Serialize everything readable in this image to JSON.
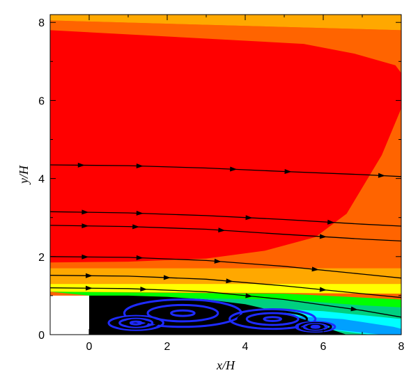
{
  "chart_data": {
    "type": "contour",
    "title": "",
    "xlabel": "x/H",
    "ylabel": "y/H",
    "xlim": [
      -1,
      8
    ],
    "ylim": [
      0,
      8.2
    ],
    "x_ticks": [
      0,
      2,
      4,
      6,
      8
    ],
    "y_ticks": [
      0,
      2,
      4,
      6,
      8
    ],
    "grid": false,
    "legend": "none",
    "step": {
      "x_from": -1,
      "x_to": 0,
      "height": 1,
      "color": "#ffffff"
    },
    "contour_levels_colors": [
      "#00a0ff",
      "#00ffff",
      "#00d080",
      "#00ff00",
      "#ffff00",
      "#ffa800",
      "#ff6400",
      "#ff0000"
    ],
    "contour_regions": [
      {
        "color": "#ffa800",
        "x": [
          -1,
          8,
          8,
          -1
        ],
        "y": [
          8.2,
          8.2,
          7.8,
          8.05
        ]
      },
      {
        "color": "#ff6400",
        "x": [
          -1,
          8,
          8,
          -1
        ],
        "y": [
          8.05,
          7.8,
          1.7,
          1.7
        ]
      },
      {
        "color": "#ff0000",
        "x": [
          -1,
          5.5,
          6.8,
          7.85,
          8,
          8,
          7.5,
          6.6,
          5.8,
          4.5,
          3,
          1,
          -1
        ],
        "y": [
          7.8,
          7.45,
          7.2,
          6.9,
          6.7,
          5.8,
          4.6,
          3.1,
          2.5,
          2.15,
          1.95,
          1.87,
          1.85
        ]
      },
      {
        "color": "#ffa800",
        "x": [
          -1,
          8,
          8,
          -1
        ],
        "y": [
          1.7,
          1.7,
          1.3,
          1.3
        ]
      },
      {
        "color": "#ffff00",
        "x": [
          -1,
          8,
          8,
          -1
        ],
        "y": [
          1.3,
          1.3,
          1.05,
          1.1
        ]
      },
      {
        "color": "#00ff00",
        "x": [
          -1,
          5,
          7,
          8,
          8,
          6.5,
          0
        ],
        "y": [
          1.1,
          1.05,
          0.95,
          0.9,
          0.0,
          0.0,
          1.0
        ]
      },
      {
        "color": "#00d080",
        "x": [
          0,
          5,
          7,
          8,
          8,
          7,
          6
        ],
        "y": [
          0.97,
          0.9,
          0.75,
          0.7,
          0.0,
          0.0,
          0.0
        ]
      },
      {
        "color": "#00ffff",
        "x": [
          0,
          6,
          7.5,
          8,
          8,
          7.2
        ],
        "y": [
          0.9,
          0.6,
          0.45,
          0.4,
          0.0,
          0.0
        ]
      },
      {
        "color": "#00a0ff",
        "x": [
          0,
          6.5,
          7.8,
          8,
          8,
          7.5
        ],
        "y": [
          0.8,
          0.4,
          0.2,
          0.15,
          0.0,
          0.0
        ]
      }
    ],
    "recirculation_zone": {
      "fill": "#000000",
      "vortex_fill": "#1e2bff",
      "outline_x": [
        0,
        1,
        2,
        3,
        4,
        5,
        5.8,
        6.3,
        6.6,
        0
      ],
      "outline_y": [
        1.0,
        1.0,
        0.97,
        0.9,
        0.78,
        0.55,
        0.3,
        0.1,
        0.0,
        0.0
      ],
      "vortices": [
        {
          "cx": 2.4,
          "cy": 0.55,
          "rx": 1.5,
          "ry": 0.35
        },
        {
          "cx": 4.7,
          "cy": 0.4,
          "rx": 1.1,
          "ry": 0.25
        },
        {
          "cx": 1.2,
          "cy": 0.3,
          "rx": 0.7,
          "ry": 0.18
        },
        {
          "cx": 5.8,
          "cy": 0.2,
          "rx": 0.5,
          "ry": 0.12
        }
      ]
    },
    "streamlines": [
      {
        "x": [
          -1,
          1,
          3,
          5,
          7,
          8
        ],
        "y": [
          4.35,
          4.33,
          4.27,
          4.18,
          4.1,
          4.05
        ],
        "arrows_at_x": [
          -0.2,
          1.3,
          3.7,
          5.1,
          7.5
        ]
      },
      {
        "x": [
          -1,
          1,
          3,
          5,
          7,
          8
        ],
        "y": [
          3.15,
          3.12,
          3.05,
          2.95,
          2.83,
          2.78
        ],
        "arrows_at_x": [
          -0.1,
          1.3,
          4.1,
          6.2
        ]
      },
      {
        "x": [
          -1,
          1,
          3,
          5,
          7,
          8
        ],
        "y": [
          2.8,
          2.77,
          2.7,
          2.57,
          2.45,
          2.4
        ],
        "arrows_at_x": [
          -0.1,
          1.2,
          3.4,
          6.0
        ]
      },
      {
        "x": [
          -1,
          1,
          3,
          5,
          7,
          8
        ],
        "y": [
          2.0,
          1.98,
          1.9,
          1.75,
          1.55,
          1.45
        ],
        "arrows_at_x": [
          -0.1,
          1.3,
          3.3,
          5.8
        ]
      },
      {
        "x": [
          -1,
          1,
          3,
          5,
          7,
          8
        ],
        "y": [
          1.52,
          1.5,
          1.42,
          1.25,
          1.05,
          0.95
        ],
        "arrows_at_x": [
          0.0,
          2.0,
          3.6,
          6.0
        ]
      },
      {
        "x": [
          -1,
          1,
          3,
          5,
          7,
          8
        ],
        "y": [
          1.2,
          1.18,
          1.1,
          0.9,
          0.62,
          0.45
        ],
        "arrows_at_x": [
          0.0,
          1.4,
          4.1,
          6.8
        ]
      }
    ]
  }
}
